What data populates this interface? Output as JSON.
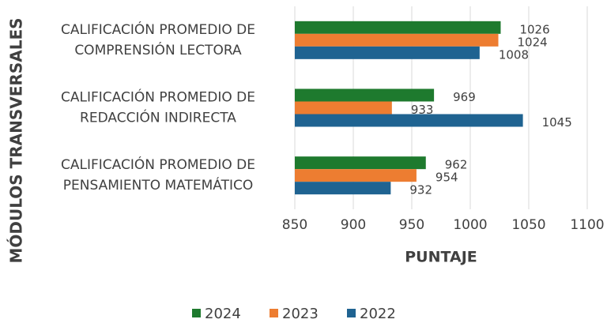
{
  "chart_data": {
    "type": "bar",
    "orientation": "horizontal",
    "categories": [
      "CALIFICACIÓN PROMEDIO DE COMPRENSIÓN LECTORA",
      "CALIFICACIÓN PROMEDIO DE REDACCIÓN INDIRECTA",
      "CALIFICACIÓN PROMEDIO DE PENSAMIENTO MATEMÁTICO"
    ],
    "series": [
      {
        "name": "2024",
        "color": "#1e7a2e",
        "values": [
          1026,
          969,
          962
        ]
      },
      {
        "name": "2023",
        "color": "#ed7d31",
        "values": [
          1024,
          933,
          954
        ]
      },
      {
        "name": "2022",
        "color": "#1f6391",
        "values": [
          1008,
          1045,
          932
        ]
      }
    ],
    "xlabel": "PUNTAJE",
    "ylabel": "MÓDULOS TRANSVERSALES",
    "xlim": [
      850,
      1100
    ],
    "xticks": [
      850,
      900,
      950,
      1000,
      1050,
      1100
    ],
    "grid": true,
    "legend": "bottom"
  }
}
